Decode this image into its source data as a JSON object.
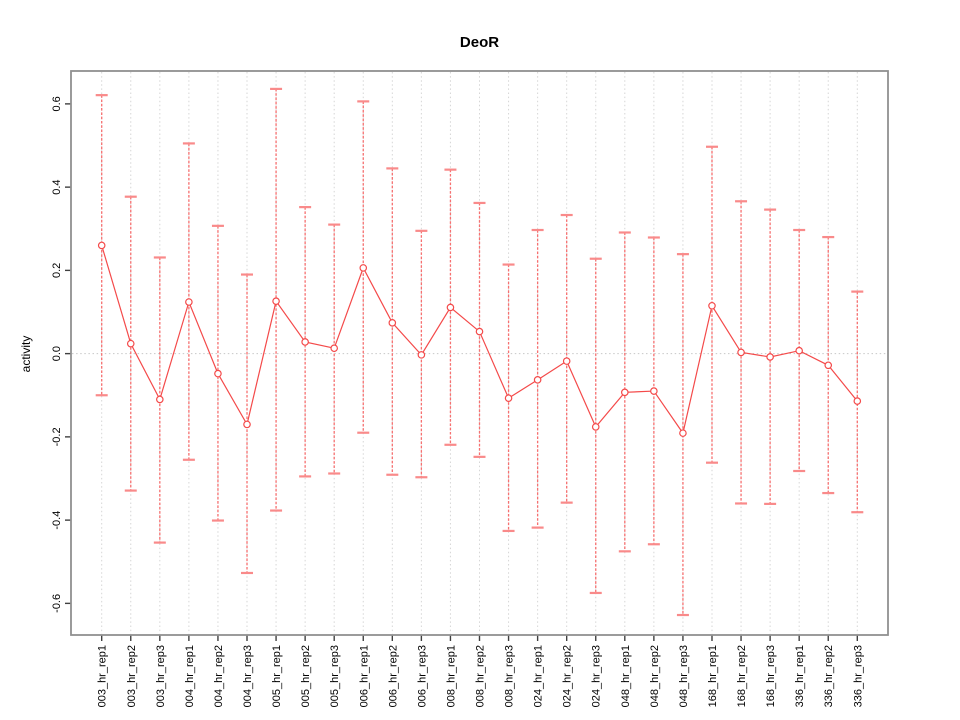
{
  "title": "DeoR",
  "chart_data": {
    "type": "line",
    "title": "DeoR",
    "xlabel": "",
    "ylabel": "activity",
    "legend": "none",
    "grid": "vertical dashed gridline at each category; dotted horizontal line at y=0",
    "ylim": [
      -0.676,
      0.679
    ],
    "yticks": [
      -0.6,
      -0.4,
      -0.2,
      0.0,
      0.2,
      0.4,
      0.6
    ],
    "ytick_labels": [
      "-0.6",
      "-0.4",
      "-0.2",
      "0.0",
      "0.2",
      "0.4",
      "0.6"
    ],
    "categories": [
      "003_hr_rep1",
      "003_hr_rep2",
      "003_hr_rep3",
      "004_hr_rep1",
      "004_hr_rep2",
      "004_hr_rep3",
      "005_hr_rep1",
      "005_hr_rep2",
      "005_hr_rep3",
      "006_hr_rep1",
      "006_hr_rep2",
      "006_hr_rep3",
      "008_hr_rep1",
      "008_hr_rep2",
      "008_hr_rep3",
      "024_hr_rep1",
      "024_hr_rep2",
      "024_hr_rep3",
      "048_hr_rep1",
      "048_hr_rep2",
      "048_hr_rep3",
      "168_hr_rep1",
      "168_hr_rep2",
      "168_hr_rep3",
      "336_hr_rep1",
      "336_hr_rep2",
      "336_hr_rep3"
    ],
    "series": [
      {
        "name": "activity",
        "marker": "open-circle",
        "values": [
          0.26,
          0.024,
          -0.11,
          0.124,
          -0.048,
          -0.17,
          0.126,
          0.028,
          0.013,
          0.206,
          0.074,
          -0.003,
          0.111,
          0.053,
          -0.107,
          -0.063,
          -0.018,
          -0.176,
          -0.093,
          -0.09,
          -0.191,
          0.115,
          0.003,
          -0.008,
          0.007,
          -0.028,
          -0.114
        ],
        "error_high": [
          0.621,
          0.377,
          0.231,
          0.505,
          0.307,
          0.19,
          0.636,
          0.352,
          0.31,
          0.606,
          0.445,
          0.295,
          0.442,
          0.362,
          0.214,
          0.297,
          0.333,
          0.228,
          0.291,
          0.279,
          0.239,
          0.497,
          0.366,
          0.346,
          0.297,
          0.28,
          0.149
        ],
        "error_low": [
          -0.1,
          -0.329,
          -0.454,
          -0.255,
          -0.401,
          -0.527,
          -0.377,
          -0.295,
          -0.288,
          -0.19,
          -0.291,
          -0.297,
          -0.219,
          -0.248,
          -0.426,
          -0.418,
          -0.358,
          -0.575,
          -0.475,
          -0.458,
          -0.628,
          -0.262,
          -0.36,
          -0.361,
          -0.282,
          -0.335,
          -0.381
        ]
      }
    ],
    "colors": {
      "series_line": "#f44a4a",
      "marker": "#f44a4a",
      "error_bar": "#f77070",
      "error_cap": "#f98a8a",
      "gridline": "#d6d6d6",
      "zero_line": "#c8c8c8",
      "plot_border": "#909090",
      "tick": "#404040",
      "text": "#000000",
      "background": "#ffffff"
    }
  }
}
